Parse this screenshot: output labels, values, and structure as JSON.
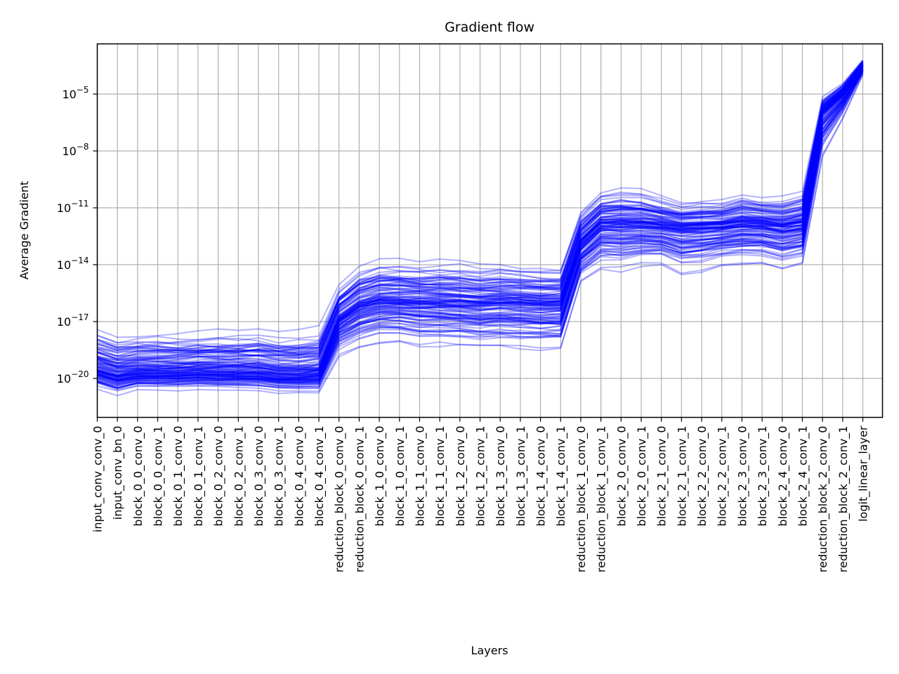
{
  "chart_data": {
    "type": "line",
    "title": "Gradient flow",
    "xlabel": "Layers",
    "ylabel": "Average Gradient",
    "yscale": "log",
    "ylim": [
      1e-22,
      0.001
    ],
    "grid": true,
    "legend": "none",
    "series_color": "#0000ff",
    "series_opacity": 0.3,
    "series_count": 120,
    "categories": [
      "input_conv_conv_0",
      "input_conv_bn_0",
      "block_0_0_conv_0",
      "block_0_0_conv_1",
      "block_0_1_conv_0",
      "block_0_1_conv_1",
      "block_0_2_conv_0",
      "block_0_2_conv_1",
      "block_0_3_conv_0",
      "block_0_3_conv_1",
      "block_0_4_conv_0",
      "block_0_4_conv_1",
      "reduction_block_0_conv_0",
      "reduction_block_0_conv_1",
      "block_1_0_conv_0",
      "block_1_0_conv_1",
      "block_1_1_conv_0",
      "block_1_1_conv_1",
      "block_1_2_conv_0",
      "block_1_2_conv_1",
      "block_1_3_conv_0",
      "block_1_3_conv_1",
      "block_1_4_conv_0",
      "block_1_4_conv_1",
      "reduction_block_1_conv_0",
      "reduction_block_1_conv_1",
      "block_2_0_conv_0",
      "block_2_0_conv_1",
      "block_2_1_conv_0",
      "block_2_1_conv_1",
      "block_2_2_conv_0",
      "block_2_2_conv_1",
      "block_2_3_conv_0",
      "block_2_3_conv_1",
      "block_2_4_conv_0",
      "block_2_4_conv_1",
      "reduction_block_2_conv_0",
      "reduction_block_2_conv_1",
      "logit_linear_layer"
    ],
    "yticks": [
      {
        "value": 1e-20,
        "base": "10",
        "exp": "−20"
      },
      {
        "value": 1e-17,
        "base": "10",
        "exp": "−17"
      },
      {
        "value": 1e-14,
        "base": "10",
        "exp": "−14"
      },
      {
        "value": 1e-11,
        "base": "10",
        "exp": "−11"
      },
      {
        "value": 1e-08,
        "base": "10",
        "exp": "−8"
      },
      {
        "value": 1e-05,
        "base": "10",
        "exp": "−5"
      }
    ],
    "series_envelope": {
      "upper": [
        2e-17,
        1e-17,
        1.4e-17,
        1.3e-17,
        1.1e-17,
        1.2e-17,
        1.4e-17,
        1.5e-17,
        1.6e-17,
        1.2e-17,
        1.3e-17,
        1.8e-17,
        3e-15,
        3e-14,
        6e-14,
        6e-14,
        4e-14,
        4e-14,
        4e-14,
        3e-14,
        3.5e-14,
        3e-14,
        2.5e-14,
        2.5e-14,
        2e-11,
        2e-10,
        3e-10,
        2.5e-10,
        1e-10,
        5e-11,
        6e-11,
        6e-11,
        1.5e-10,
        8e-11,
        9e-11,
        2e-10,
        1e-05,
        5e-05,
        0.0008
      ],
      "median": [
        3e-20,
        1.5e-20,
        2e-20,
        2e-20,
        2e-20,
        2.2e-20,
        2e-20,
        2e-20,
        2e-20,
        1.5e-20,
        1.5e-20,
        1.8e-20,
        1e-17,
        5e-17,
        1e-16,
        1e-16,
        9e-17,
        9e-17,
        8e-17,
        7e-17,
        8e-17,
        7e-17,
        6e-17,
        6e-17,
        1e-13,
        1e-12,
        1e-12,
        1e-12,
        8e-13,
        6e-13,
        7e-13,
        8e-13,
        1e-12,
        1e-12,
        7e-13,
        1e-12,
        1e-06,
        1e-05,
        0.0003
      ],
      "lower": [
        2e-21,
        1e-21,
        2e-21,
        2e-21,
        2e-21,
        2.2e-21,
        2e-21,
        2e-21,
        2e-21,
        1.5e-21,
        1.5e-21,
        1.5e-21,
        1e-19,
        3e-19,
        6e-19,
        6e-19,
        4e-19,
        4e-19,
        4e-19,
        3e-19,
        3.5e-19,
        3e-19,
        3e-19,
        3e-19,
        1e-15,
        5e-15,
        4e-15,
        8e-15,
        1e-14,
        3e-15,
        4e-15,
        8e-15,
        1e-14,
        1e-14,
        5e-15,
        1e-14,
        5e-09,
        5e-07,
        0.0001
      ]
    }
  }
}
